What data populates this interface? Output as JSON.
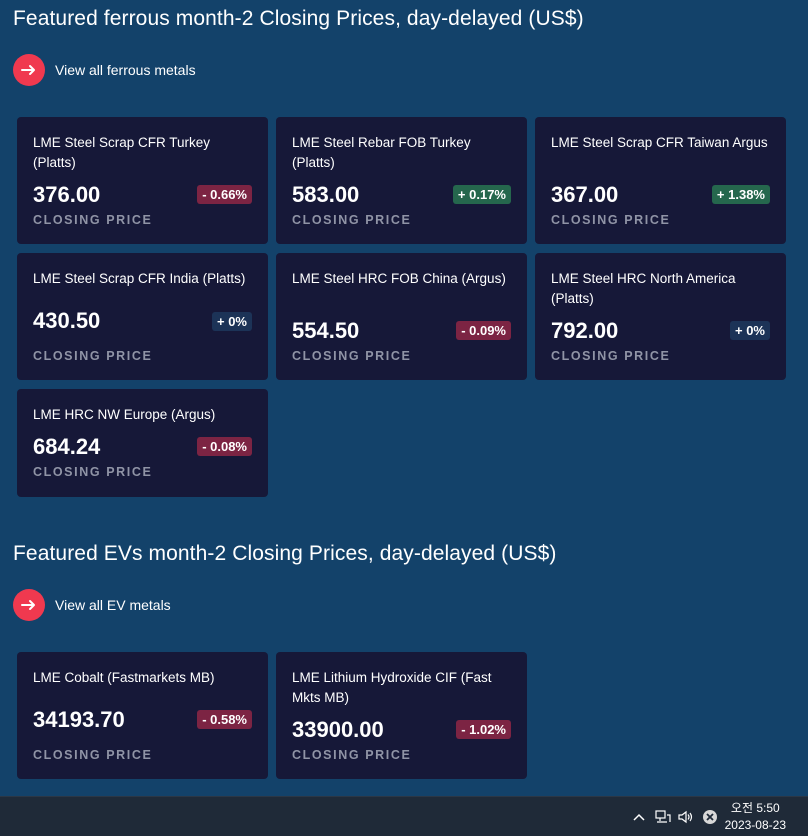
{
  "ferrous": {
    "title": "Featured ferrous month-2 Closing Prices, day-delayed (US$)",
    "view_all": "View all ferrous metals",
    "cards": [
      {
        "name": "LME Steel Scrap CFR Turkey (Platts)",
        "price": "376.00",
        "change": "- 0.66%",
        "direction": "neg",
        "label": "CLOSING PRICE"
      },
      {
        "name": "LME Steel Rebar FOB Turkey (Platts)",
        "price": "583.00",
        "change": "+ 0.17%",
        "direction": "pos",
        "label": "CLOSING PRICE"
      },
      {
        "name": "LME Steel Scrap CFR Taiwan Argus",
        "price": "367.00",
        "change": "+ 1.38%",
        "direction": "pos",
        "label": "CLOSING PRICE"
      },
      {
        "name": "LME Steel Scrap CFR India (Platts)",
        "price": "430.50",
        "change": "+ 0%",
        "direction": "zero",
        "label": "CLOSING PRICE"
      },
      {
        "name": "LME Steel HRC FOB China (Argus)",
        "price": "554.50",
        "change": "- 0.09%",
        "direction": "neg",
        "label": "CLOSING PRICE"
      },
      {
        "name": "LME Steel HRC North America (Platts)",
        "price": "792.00",
        "change": "+ 0%",
        "direction": "zero",
        "label": "CLOSING PRICE"
      },
      {
        "name": "LME HRC NW Europe (Argus)",
        "price": "684.24",
        "change": "- 0.08%",
        "direction": "neg",
        "label": "CLOSING PRICE"
      }
    ]
  },
  "ev": {
    "title": "Featured EVs month-2 Closing Prices, day-delayed (US$)",
    "view_all": "View all EV metals",
    "cards": [
      {
        "name": "LME Cobalt (Fastmarkets MB)",
        "price": "34193.70",
        "change": "- 0.58%",
        "direction": "neg",
        "label": "CLOSING PRICE"
      },
      {
        "name": "LME Lithium Hydroxide CIF (Fast Mkts MB)",
        "price": "33900.00",
        "change": "- 1.02%",
        "direction": "neg",
        "label": "CLOSING PRICE"
      }
    ]
  },
  "taskbar": {
    "time": "오전 5:50",
    "date": "2023-08-23",
    "icons": [
      "chevron-up-icon",
      "network-icon",
      "volume-icon",
      "close-circle-icon"
    ]
  },
  "colors": {
    "background": "#13426a",
    "card": "#161838",
    "accent": "#f0394f",
    "negative": "#7c2443",
    "positive": "#25674d",
    "neutral": "#1c3357"
  }
}
